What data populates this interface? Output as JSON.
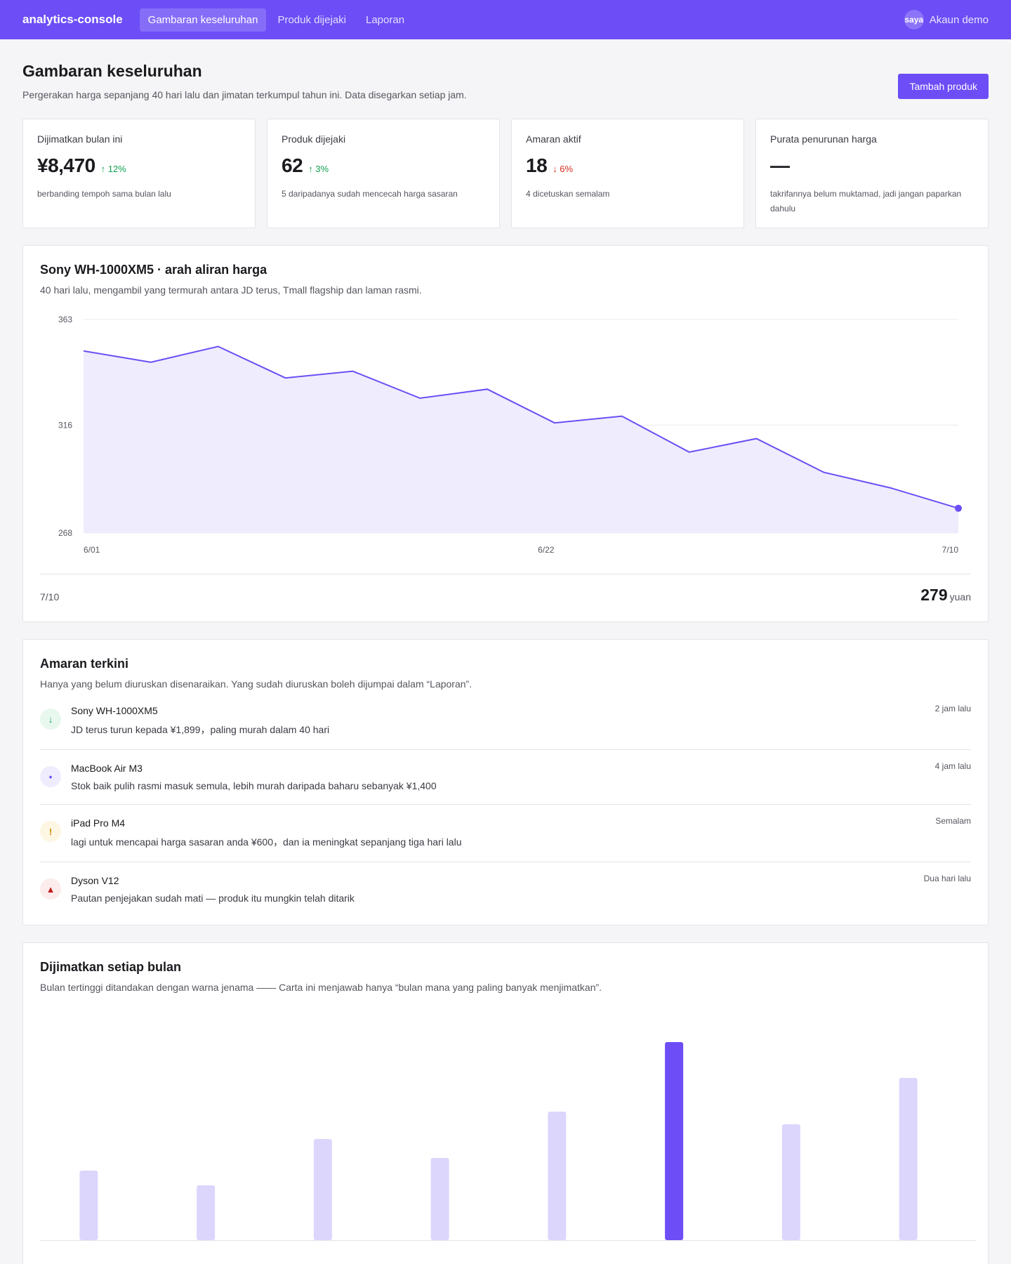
{
  "nav": {
    "brand": "analytics-console",
    "links": [
      "Gambaran keseluruhan",
      "Produk dijejaki",
      "Laporan"
    ],
    "avatar_text": "saya",
    "account_label": "Akaun demo"
  },
  "header": {
    "title": "Gambaran keseluruhan",
    "subtitle": "Pergerakan harga sepanjang 40 hari lalu dan jimatan terkumpul tahun ini. Data disegarkan setiap jam.",
    "add_button": "Tambah produk"
  },
  "stats": [
    {
      "label": "Dijimatkan bulan ini",
      "value": "¥8,470",
      "delta": "↑ 12%",
      "note": "berbanding tempoh sama bulan lalu"
    },
    {
      "label": "Produk dijejaki",
      "value": "62",
      "delta": "↑ 3%",
      "note": "5 daripadanya sudah mencecah harga sasaran"
    },
    {
      "label": "Amaran aktif",
      "value": "18",
      "delta": "↓ 6%",
      "note": "4 dicetuskan semalam"
    },
    {
      "label": "Purata penurunan harga",
      "value": "—",
      "delta": "",
      "note": "takrifannya belum muktamad, jadi jangan paparkan dahulu"
    }
  ],
  "colors": {
    "accent": "#6c4df6",
    "accent_light": "#dcd6fd",
    "area_fill": "#efecfd",
    "up": "#12a150",
    "down": "#d92d20"
  },
  "price_card": {
    "title": "Sony WH-1000XM5 · arah aliran harga",
    "subtitle": "40 hari lalu, mengambil yang termurah antara JD terus, Tmall flagship dan laman rasmi.",
    "footer_date": "7/10",
    "footer_price": "279",
    "footer_unit": "yuan"
  },
  "chart_data": [
    {
      "type": "area",
      "x_ticks": [
        "6/01",
        "6/22",
        "7/10"
      ],
      "y_ticks": [
        "363",
        "316",
        "268"
      ],
      "ylim": [
        268,
        363
      ],
      "values": [
        349,
        344,
        351,
        337,
        340,
        328,
        332,
        317,
        320,
        304,
        310,
        295,
        288,
        279
      ],
      "grid": true
    },
    {
      "type": "bar",
      "values": [
        33,
        26,
        48,
        39,
        61,
        94,
        55,
        77
      ],
      "highlight_index": 5
    }
  ],
  "alerts_card": {
    "title": "Amaran terkini",
    "subtitle": "Hanya yang belum diuruskan disenaraikan. Yang sudah diuruskan boleh dijumpai dalam “Laporan”.",
    "items": [
      {
        "icon": "↓",
        "icon_name": "arrow-down-icon",
        "bg": "#e8f8ef",
        "fg": "#12a150",
        "name": "Sony WH-1000XM5",
        "text": "JD terus turun kepada ¥1,899，paling murah dalam 40 hari",
        "time": "2 jam lalu"
      },
      {
        "icon": "•",
        "icon_name": "dot-icon",
        "bg": "#efecfd",
        "fg": "#6c4df6",
        "name": "MacBook Air M3",
        "text": "Stok baik pulih rasmi masuk semula, lebih murah daripada baharu sebanyak ¥1,400",
        "time": "4 jam lalu"
      },
      {
        "icon": "!",
        "icon_name": "warning-icon",
        "bg": "#fdf6e3",
        "fg": "#c98a04",
        "name": "iPad Pro M4",
        "text": "lagi untuk mencapai harga sasaran anda ¥600，dan ia meningkat sepanjang tiga hari lalu",
        "time": "Semalam"
      },
      {
        "icon": "▲",
        "icon_name": "alert-triangle-icon",
        "bg": "#fdecec",
        "fg": "#c21f1f",
        "name": "Dyson V12",
        "text": "Pautan penjejakan sudah mati — produk itu mungkin telah ditarik",
        "time": "Dua hari lalu"
      }
    ]
  },
  "monthly_card": {
    "title": "Dijimatkan setiap bulan",
    "subtitle": "Bulan tertinggi ditandakan dengan warna jenama —— Carta ini menjawab hanya “bulan mana yang paling banyak menjimatkan”."
  }
}
